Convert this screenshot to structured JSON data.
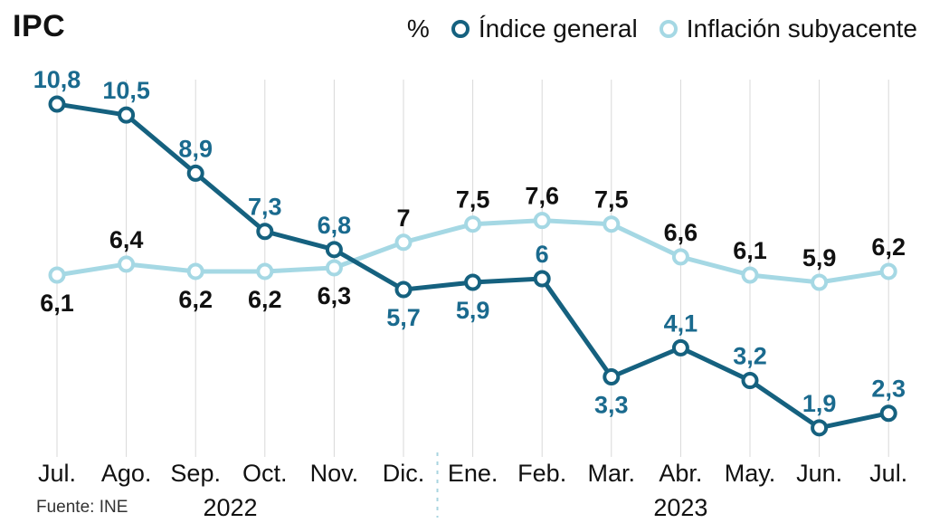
{
  "title": "IPC",
  "source": "Fuente: INE",
  "legend": {
    "unit": "%",
    "series1": "Índice general",
    "series2": "Inflación subyacente"
  },
  "colors": {
    "general_line": "#15617f",
    "general_label": "#1a6a8e",
    "subyacente_line": "#a5d8e4",
    "subyacente_label": "#111111",
    "axis_text": "#111111",
    "gridline": "#d9d9d9",
    "separator": "#a8d4e0",
    "marker_fill": "#ffffff"
  },
  "chart_data": {
    "type": "line",
    "title": "IPC",
    "unit": "%",
    "x": [
      "Jul.",
      "Ago.",
      "Sep.",
      "Oct.",
      "Nov.",
      "Dic.",
      "Ene.",
      "Feb.",
      "Mar.",
      "Abr.",
      "May.",
      "Jun.",
      "Jul."
    ],
    "year_groups": [
      {
        "label": "2022",
        "from": 0,
        "to": 5
      },
      {
        "label": "2023",
        "from": 6,
        "to": 12
      }
    ],
    "series": [
      {
        "name": "Índice general",
        "values": [
          10.8,
          10.5,
          8.9,
          7.3,
          6.8,
          5.7,
          5.9,
          6,
          3.3,
          4.1,
          3.2,
          1.9,
          2.3
        ],
        "label_pos": [
          "above",
          "above",
          "above",
          "above",
          "above",
          "below",
          "below",
          "above",
          "below",
          "above",
          "above",
          "above",
          "above"
        ]
      },
      {
        "name": "Inflación subyacente",
        "values": [
          6.1,
          6.4,
          6.2,
          6.2,
          6.3,
          7,
          7.5,
          7.6,
          7.5,
          6.6,
          6.1,
          5.9,
          6.2
        ],
        "label_pos": [
          "below",
          "above",
          "below",
          "below",
          "below",
          "above",
          "above",
          "above",
          "above",
          "above",
          "above",
          "above",
          "above"
        ]
      }
    ],
    "ylim": [
      0,
      12
    ],
    "grid": "vertical-drop-lines",
    "legend_position": "top",
    "decimal_separator": ","
  }
}
